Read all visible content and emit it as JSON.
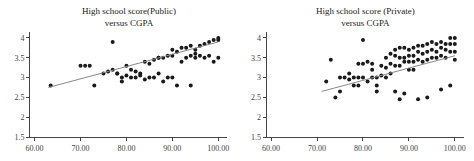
{
  "chart_data": [
    {
      "type": "scatter",
      "title": "High school score(Public)\nversus CGPA",
      "xlim": [
        59,
        102
      ],
      "ylim": [
        1.5,
        4.15
      ],
      "xticks": [
        {
          "value": 60,
          "label": "60.00"
        },
        {
          "value": 70,
          "label": "70.00"
        },
        {
          "value": 80,
          "label": "80.00"
        },
        {
          "value": 90,
          "label": "90.00"
        },
        {
          "value": 100,
          "label": "100.00"
        }
      ],
      "yticks": [
        1.5,
        2,
        2.5,
        3,
        3.5,
        4
      ],
      "grid": false,
      "series": [
        {
          "type": "scatter",
          "color": "#1a1a1a",
          "x": [
            63.5,
            70,
            71,
            72,
            73,
            75,
            76,
            77,
            77,
            78,
            78,
            79,
            79,
            80,
            80,
            81,
            81,
            82,
            82,
            83,
            83,
            84,
            84,
            85,
            85,
            86,
            86,
            87,
            87,
            87,
            88,
            88,
            89,
            89,
            90,
            90,
            90,
            91,
            91,
            92,
            92,
            93,
            93,
            94,
            94,
            94,
            95,
            95,
            95,
            96,
            96,
            97,
            97,
            98,
            98,
            99,
            99,
            100,
            100,
            100
          ],
          "values": [
            2.8,
            3.3,
            3.3,
            3.3,
            2.8,
            3.1,
            3.15,
            3.9,
            3.2,
            3.1,
            3.1,
            3.0,
            2.9,
            3.3,
            3.05,
            3.2,
            3.0,
            3.15,
            3.0,
            3.1,
            3.05,
            3.4,
            2.95,
            3.0,
            3.35,
            3.45,
            3.0,
            3.5,
            3.5,
            3.1,
            3.5,
            2.9,
            3.55,
            3.0,
            3.7,
            3.55,
            3.0,
            3.65,
            2.8,
            3.75,
            3.4,
            3.75,
            3.5,
            3.8,
            3.55,
            2.8,
            3.7,
            3.6,
            3.5,
            3.8,
            3.55,
            3.85,
            3.5,
            3.9,
            3.55,
            3.95,
            3.4,
            4.0,
            3.95,
            3.5
          ]
        },
        {
          "type": "line",
          "color": "#888888",
          "x": [
            63,
            100
          ],
          "values": [
            2.75,
            3.9
          ]
        }
      ]
    },
    {
      "type": "scatter",
      "title": "High school score (Private)\nversus CGPA",
      "xlim": [
        59,
        102
      ],
      "ylim": [
        1.5,
        4.15
      ],
      "xticks": [
        {
          "value": 60,
          "label": "60.00"
        },
        {
          "value": 70,
          "label": "70.00"
        },
        {
          "value": 80,
          "label": "80.00"
        },
        {
          "value": 90,
          "label": "90.00"
        },
        {
          "value": 100,
          "label": "100.00"
        }
      ],
      "yticks": [
        1.5,
        2,
        2.5,
        3,
        3.5,
        4
      ],
      "grid": false,
      "series": [
        {
          "type": "scatter",
          "color": "#1a1a1a",
          "x": [
            72,
            73,
            74,
            75,
            75,
            76,
            77,
            77,
            78,
            78,
            79,
            79,
            79,
            80,
            80,
            80,
            81,
            81,
            82,
            82,
            82,
            83,
            83,
            83,
            84,
            84,
            85,
            85,
            85,
            86,
            86,
            86,
            87,
            87,
            87,
            87,
            88,
            88,
            88,
            88,
            89,
            89,
            89,
            89,
            90,
            90,
            90,
            90,
            91,
            91,
            91,
            91,
            92,
            92,
            92,
            92,
            93,
            93,
            93,
            94,
            94,
            94,
            94,
            95,
            95,
            95,
            96,
            96,
            96,
            97,
            97,
            97,
            97,
            98,
            98,
            98,
            99,
            99,
            99,
            99,
            100,
            100,
            100,
            100
          ],
          "values": [
            2.9,
            3.45,
            2.5,
            3.0,
            2.65,
            3.0,
            3.1,
            2.95,
            3.0,
            2.8,
            3.35,
            3.0,
            2.8,
            3.95,
            3.35,
            3.0,
            3.4,
            2.9,
            3.35,
            3.2,
            3.0,
            3.0,
            2.8,
            2.65,
            3.3,
            3.05,
            3.5,
            3.25,
            3.0,
            3.6,
            3.35,
            3.1,
            3.7,
            3.55,
            3.3,
            2.65,
            3.75,
            3.5,
            3.3,
            2.45,
            3.75,
            3.5,
            3.4,
            2.6,
            3.7,
            3.55,
            3.4,
            3.2,
            3.75,
            3.55,
            3.4,
            3.2,
            3.8,
            3.65,
            3.45,
            2.45,
            3.8,
            3.6,
            3.4,
            3.85,
            3.65,
            3.45,
            2.5,
            3.9,
            3.7,
            3.5,
            3.85,
            3.65,
            3.5,
            3.9,
            3.75,
            3.55,
            2.7,
            3.85,
            3.7,
            3.5,
            4.0,
            3.85,
            3.65,
            2.8,
            4.0,
            3.85,
            3.65,
            3.45
          ]
        },
        {
          "type": "line",
          "color": "#888888",
          "x": [
            71,
            100
          ],
          "values": [
            2.65,
            3.55
          ]
        }
      ]
    }
  ]
}
